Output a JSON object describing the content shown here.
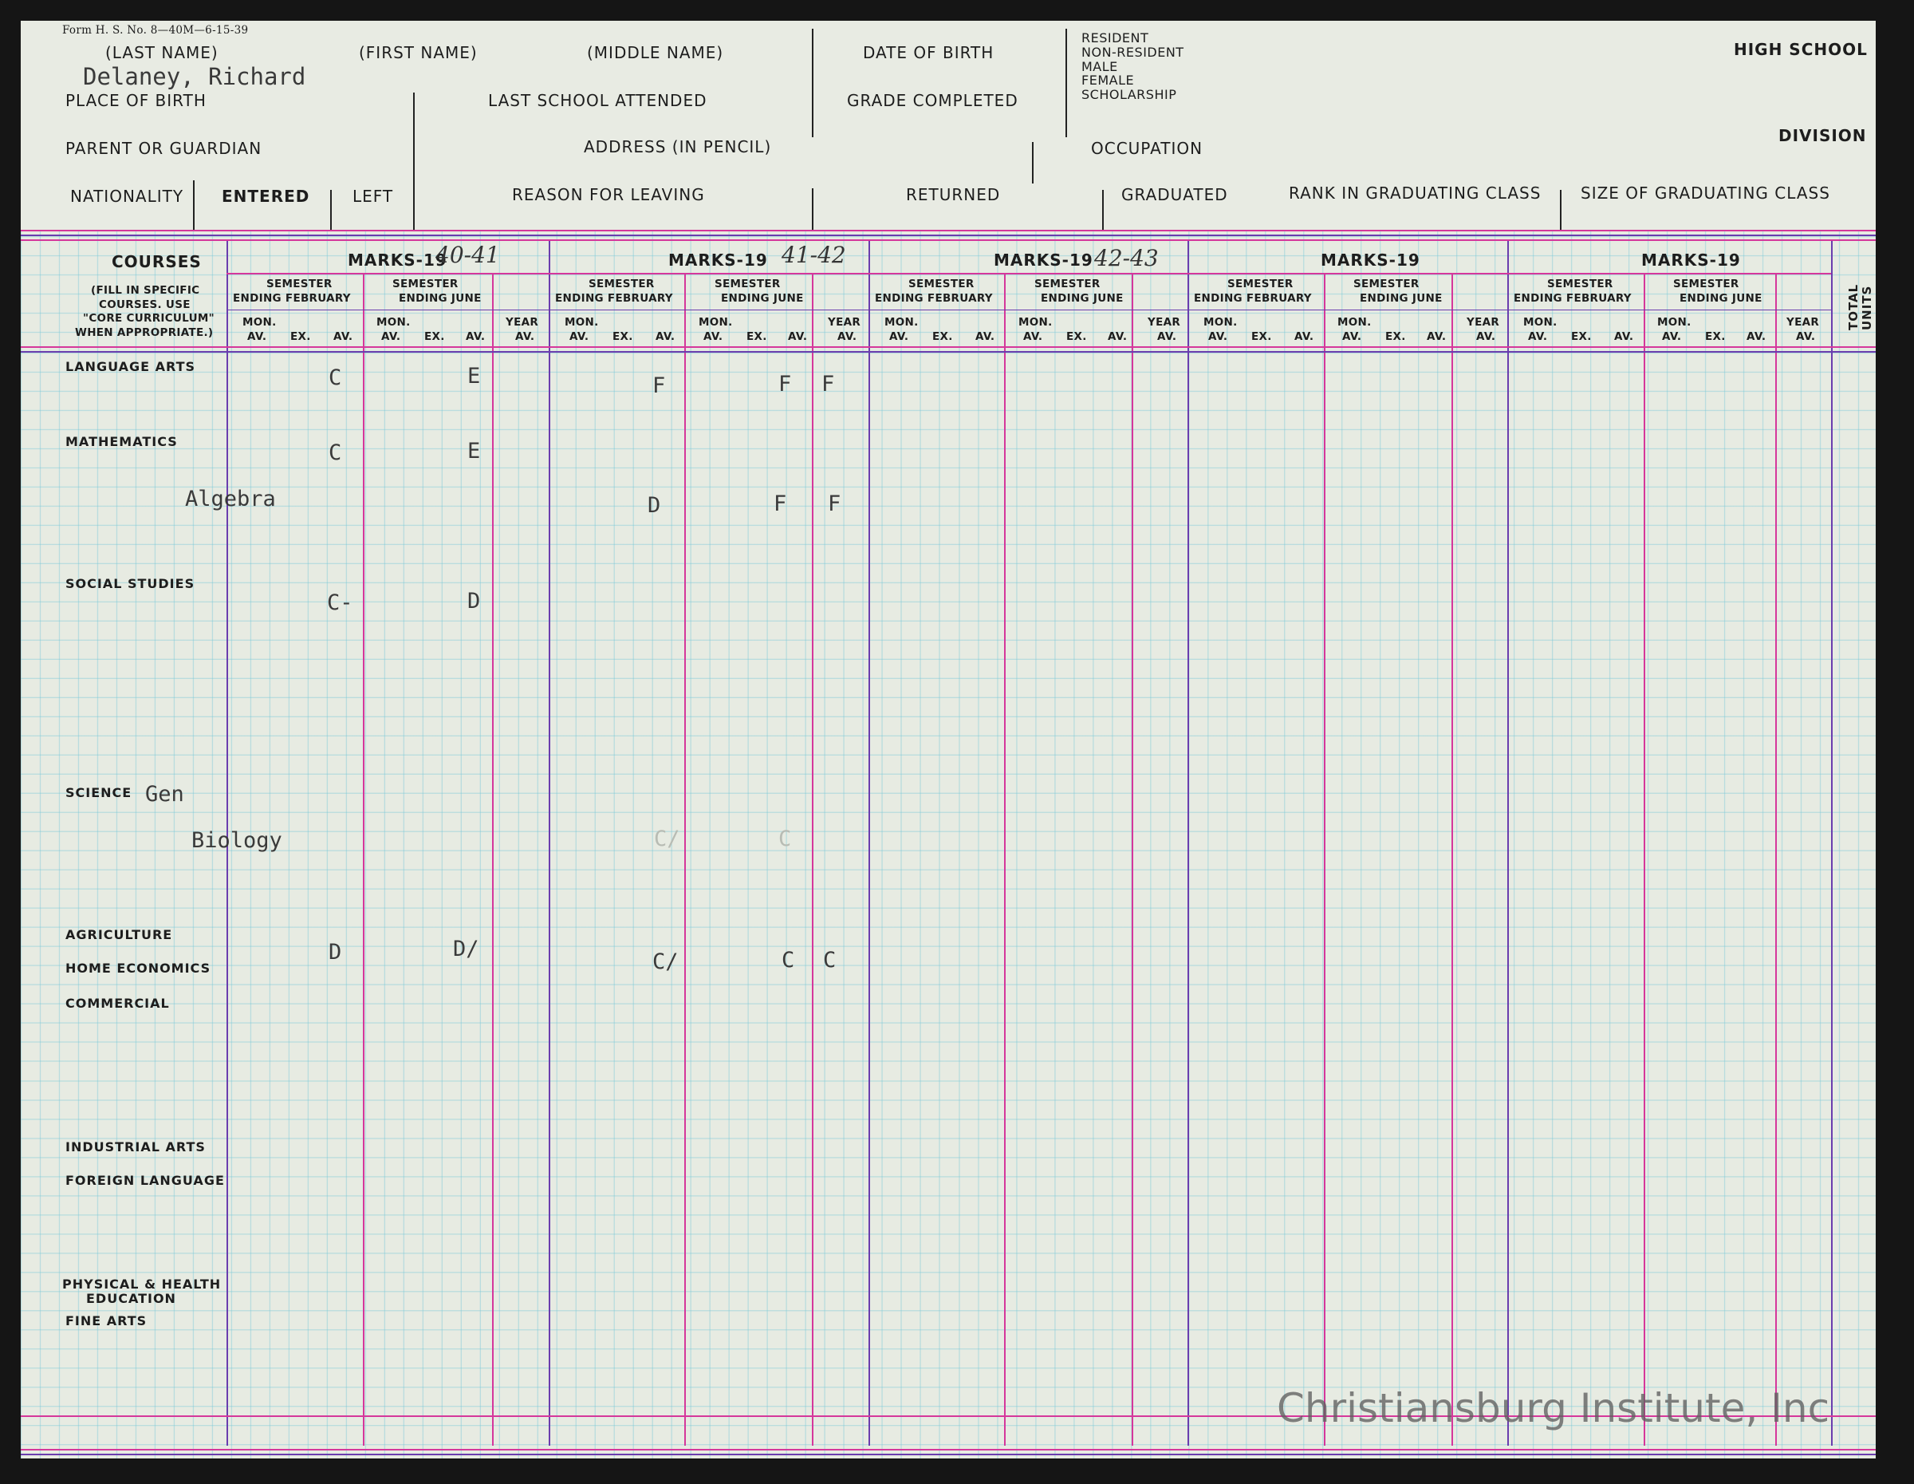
{
  "form_number": "Form H. S. No. 8—40M—6-15-39",
  "header": {
    "last_name": "(LAST NAME)",
    "first_name": "(FIRST NAME)",
    "middle_name": "(MIDDLE NAME)",
    "date_of_birth": "DATE OF BIRTH",
    "resident": "RESIDENT",
    "non_resident": "NON-RESIDENT",
    "male": "MALE",
    "female": "FEMALE",
    "scholarship": "SCHOLARSHIP",
    "high_school": "HIGH SCHOOL",
    "division": "DIVISION",
    "place_of_birth": "PLACE OF BIRTH",
    "last_school": "LAST SCHOOL ATTENDED",
    "grade_completed": "GRADE COMPLETED",
    "parent": "PARENT OR GUARDIAN",
    "address": "ADDRESS (IN PENCIL)",
    "occupation": "OCCUPATION",
    "nationality": "NATIONALITY",
    "entered": "ENTERED",
    "left": "LEFT",
    "reason": "REASON FOR LEAVING",
    "returned": "RETURNED",
    "graduated": "GRADUATED",
    "rank": "RANK IN GRADUATING CLASS",
    "size": "SIZE OF GRADUATING CLASS"
  },
  "student_name": "Delaney, Richard",
  "courses_header": {
    "title": "COURSES",
    "note1": "(FILL IN SPECIFIC",
    "note2": "COURSES. USE",
    "note3": "\"CORE CURRICULUM\"",
    "note4": "WHEN APPROPRIATE.)"
  },
  "years": [
    {
      "label": "MARKS-19",
      "year": "40-41"
    },
    {
      "label": "MARKS-19",
      "year": "41-42"
    },
    {
      "label": "MARKS-19",
      "year": "42-43"
    },
    {
      "label": "MARKS-19",
      "year": ""
    },
    {
      "label": "MARKS-19",
      "year": ""
    }
  ],
  "sub": {
    "semester": "SEMESTER",
    "ending_february": "ENDING FEBRUARY",
    "ending_june": "ENDING JUNE",
    "mon": "MON.",
    "av": "AV.",
    "ex": "EX.",
    "year": "YEAR",
    "total": "TOTAL",
    "units": "UNITS"
  },
  "courses": {
    "language_arts": "LANGUAGE ARTS",
    "mathematics": "MATHEMATICS",
    "algebra": "Algebra",
    "social_studies": "SOCIAL STUDIES",
    "science": "SCIENCE",
    "gen": "Gen",
    "biology": "Biology",
    "agriculture": "AGRICULTURE",
    "home_economics": "HOME ECONOMICS",
    "commercial": "COMMERCIAL",
    "industrial_arts": "INDUSTRIAL ARTS",
    "foreign_language": "FOREIGN LANGUAGE",
    "physical1": "PHYSICAL & HEALTH",
    "physical2": "EDUCATION",
    "fine_arts": "FINE ARTS"
  },
  "marks": {
    "la_1": "C",
    "la_2": "E",
    "la_3": "F",
    "la_4": "F",
    "la_5": "F",
    "ma_1": "C",
    "ma_2": "E",
    "alg_1": "D",
    "alg_2": "F",
    "alg_3": "F",
    "ss_1": "C-",
    "ss_2": "D",
    "bio_1": "C/",
    "bio_2": "C",
    "ag_1": "D",
    "ag_2": "D/",
    "ag_3": "C/",
    "ag_4": "C",
    "ag_5": "C"
  },
  "watermark": "Christiansburg Institute, Inc"
}
